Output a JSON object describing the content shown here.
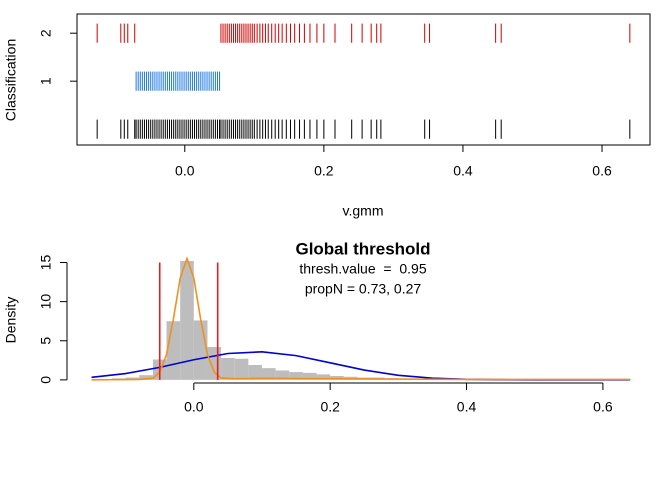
{
  "chart_data": [
    {
      "type": "strip",
      "xlabel": "v.gmm",
      "ylabel": "Classification",
      "xlim": [
        -0.155,
        0.669
      ],
      "xticks": [
        {
          "value": 0,
          "label": "0.0"
        },
        0.2,
        0.4,
        0.6
      ],
      "ylim": [
        -0.33,
        2.4
      ],
      "yticks": [
        1,
        2
      ],
      "series": [
        {
          "y": 0,
          "color": "#000000",
          "values": [
            -0.126,
            -0.092,
            -0.087,
            -0.082,
            -0.072,
            0.052,
            0.055,
            0.058,
            0.061,
            0.064,
            0.067,
            0.07,
            0.073,
            0.076,
            0.079,
            0.082,
            0.085,
            0.088,
            0.091,
            0.094,
            0.097,
            0.1,
            0.104,
            0.108,
            0.112,
            0.116,
            0.12,
            0.125,
            0.13,
            0.135,
            0.14,
            0.146,
            0.152,
            0.158,
            0.165,
            0.172,
            0.18,
            0.19,
            0.2,
            0.216,
            0.24,
            0.255,
            0.268,
            0.276,
            0.282,
            0.345,
            0.352,
            0.447,
            0.455,
            0.64,
            -0.07,
            -0.067,
            -0.064,
            -0.061,
            -0.058,
            -0.055,
            -0.052,
            -0.049,
            -0.046,
            -0.043,
            -0.04,
            -0.037,
            -0.034,
            -0.031,
            -0.028,
            -0.025,
            -0.022,
            -0.019,
            -0.016,
            -0.013,
            -0.01,
            -0.007,
            -0.004,
            -0.001,
            0.002,
            0.005,
            0.008,
            0.011,
            0.014,
            0.017,
            0.02,
            0.023,
            0.026,
            0.029,
            0.032,
            0.035,
            0.038,
            0.041,
            0.044,
            0.047,
            0.05
          ]
        },
        {
          "y": 1,
          "color": "#1e78e6",
          "values": [
            -0.07,
            -0.067,
            -0.064,
            -0.061,
            -0.058,
            -0.055,
            -0.052,
            -0.049,
            -0.046,
            -0.043,
            -0.04,
            -0.037,
            -0.034,
            -0.031,
            -0.028,
            -0.025,
            -0.022,
            -0.019,
            -0.016,
            -0.013,
            -0.01,
            -0.007,
            -0.004,
            -0.001,
            0.002,
            0.005,
            0.008,
            0.011,
            0.014,
            0.017,
            0.02,
            0.023,
            0.026,
            0.029,
            0.032,
            0.035,
            0.038,
            0.041,
            0.044,
            0.047,
            0.05
          ]
        },
        {
          "y": 2,
          "color": "#cc0000",
          "values": [
            -0.126,
            -0.092,
            -0.087,
            -0.082,
            -0.072,
            0.052,
            0.055,
            0.058,
            0.061,
            0.064,
            0.067,
            0.07,
            0.073,
            0.076,
            0.079,
            0.082,
            0.085,
            0.088,
            0.091,
            0.094,
            0.097,
            0.1,
            0.104,
            0.108,
            0.112,
            0.116,
            0.12,
            0.125,
            0.13,
            0.135,
            0.14,
            0.146,
            0.152,
            0.158,
            0.165,
            0.172,
            0.18,
            0.19,
            0.2,
            0.216,
            0.24,
            0.255,
            0.268,
            0.276,
            0.282,
            0.345,
            0.352,
            0.447,
            0.455,
            0.64
          ]
        }
      ]
    },
    {
      "type": "histogram",
      "title": "Global threshold",
      "annotations": [
        "thresh.value  =  0.95",
        "propN = 0.73, 0.27"
      ],
      "ylabel": "Density",
      "color": "#bdbdbd",
      "bins": [
        -0.14,
        -0.12,
        -0.1,
        -0.08,
        -0.06,
        -0.04,
        -0.02,
        0,
        0.02,
        0.04,
        0.06,
        0.08,
        0.1,
        0.12,
        0.14,
        0.16,
        0.18,
        0.2,
        0.22,
        0.24,
        0.26,
        0.28,
        0.3,
        0.32,
        0.34,
        0.36,
        0.38,
        0.4,
        0.42,
        0.44,
        0.46,
        0.48,
        0.5,
        0.52,
        0.54,
        0.56,
        0.58,
        0.6,
        0.62,
        0.64
      ],
      "counts": [
        0.1,
        0.2,
        0.3,
        0.6,
        2.6,
        7.5,
        15.2,
        7.6,
        4.2,
        2.8,
        2.7,
        1.9,
        1.5,
        1.2,
        1.0,
        0.9,
        0.7,
        0.5,
        0.4,
        0.3,
        0.3,
        0.2,
        0.1,
        0.1,
        0.2,
        0.1,
        0.1,
        0.05,
        0.05,
        0.1,
        0.05,
        0.05,
        0,
        0,
        0,
        0,
        0,
        0,
        0.05
      ],
      "xlim": [
        -0.186,
        0.65
      ],
      "xticks": [
        {
          "value": 0,
          "label": "0.0"
        },
        0.2,
        0.4,
        0.6
      ],
      "ylim": [
        -0.4,
        16.6
      ],
      "yticks": [
        0,
        5,
        10,
        15
      ],
      "lines": [
        {
          "color": "#0000cc",
          "x": [
            -0.15,
            -0.1,
            -0.05,
            0,
            0.05,
            0.1,
            0.15,
            0.2,
            0.25,
            0.3,
            0.35,
            0.4,
            0.45,
            0.5,
            0.64
          ],
          "y": [
            0.33,
            0.81,
            1.6,
            2.57,
            3.37,
            3.59,
            3.1,
            2.18,
            1.25,
            0.58,
            0.22,
            0.07,
            0.02,
            0,
            0
          ]
        },
        {
          "color": "#f09020",
          "x": [
            -0.15,
            -0.08,
            -0.06,
            -0.05,
            -0.04,
            -0.03,
            -0.02,
            -0.01,
            0,
            0.01,
            0.02,
            0.03,
            0.04,
            0.06,
            0.1,
            0.2,
            0.3,
            0.4,
            0.5,
            0.64
          ],
          "y": [
            0,
            0.05,
            0.2,
            0.97,
            3.26,
            7.76,
            13,
            15.5,
            13,
            7.76,
            3.26,
            0.97,
            0.25,
            0.15,
            0.2,
            0.15,
            0.1,
            0.05,
            0.05,
            0.05
          ]
        }
      ],
      "vline_color": "#e02020",
      "vlines": [
        {
          "x": -0.05,
          "ymax": 15
        },
        {
          "x": 0.035,
          "ymax": 15
        }
      ]
    }
  ]
}
